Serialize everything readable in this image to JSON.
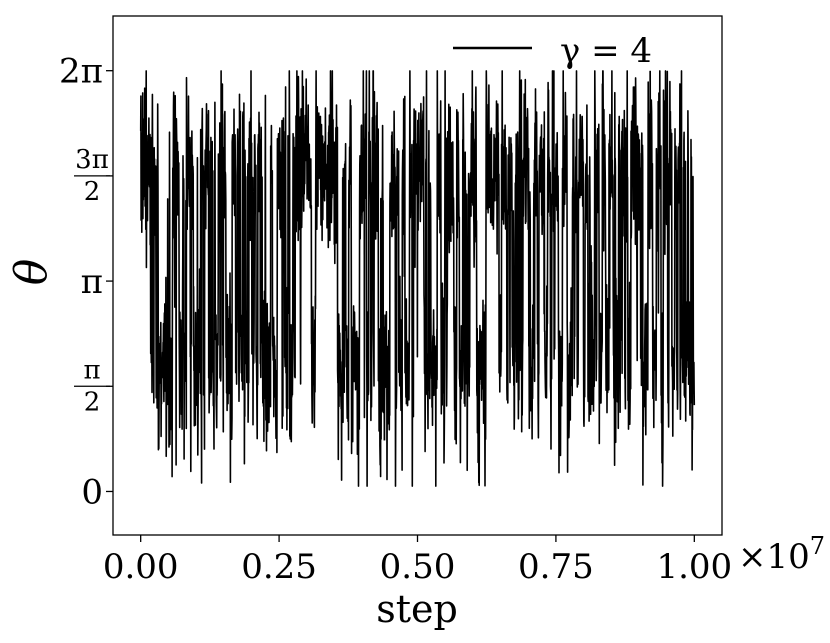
{
  "chart_data": {
    "type": "line",
    "title": "",
    "xlabel": "step",
    "ylabel": "θ",
    "x_multiplier": "×10",
    "x_multiplier_exp": "7",
    "xlim": [
      -0.05,
      1.05
    ],
    "ylim": [
      -0.65,
      7.1
    ],
    "x_ticks": [
      {
        "value": 0.0,
        "label": "0.00"
      },
      {
        "value": 0.25,
        "label": "0.25"
      },
      {
        "value": 0.5,
        "label": "0.50"
      },
      {
        "value": 0.75,
        "label": "0.75"
      },
      {
        "value": 1.0,
        "label": "1.00"
      }
    ],
    "y_ticks": [
      {
        "value": 0,
        "label": "0"
      },
      {
        "value": 1.5708,
        "num": "π",
        "den": "2"
      },
      {
        "value": 3.1416,
        "label": "π"
      },
      {
        "value": 4.7124,
        "num": "3π",
        "den": "2"
      },
      {
        "value": 6.2832,
        "label": "2π"
      }
    ],
    "grid": false,
    "legend_position": "top-right",
    "series": [
      {
        "name": "γ = 4",
        "color": "#000000",
        "x_range": [
          0.0,
          1.0
        ],
        "samples": 2500,
        "description_values": {
          "upper_band_mean": 4.8,
          "lower_band_mean": 1.9,
          "max_value": 6.28,
          "min_value": 0.08
        }
      }
    ]
  }
}
